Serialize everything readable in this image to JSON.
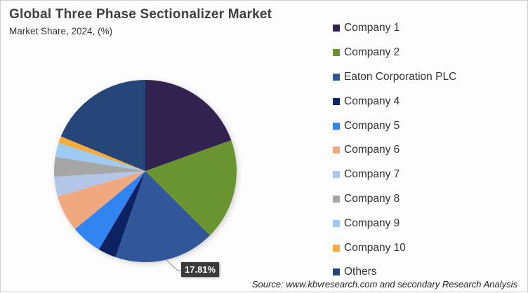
{
  "header": {
    "title": "Global Three Phase Sectionalizer Market",
    "subtitle": "Market Share, 2024, (%)"
  },
  "callout": {
    "label": "17.81%"
  },
  "source": "Source: www.kbvresearch.com and secondary Research Analysis",
  "legend": [
    {
      "label": "Company 1",
      "color": "#30234f"
    },
    {
      "label": "Company 2",
      "color": "#6b9331"
    },
    {
      "label": "Eaton Corporation PLC",
      "color": "#30569a"
    },
    {
      "label": "Company 4",
      "color": "#0b2463"
    },
    {
      "label": "Company 5",
      "color": "#3284f0"
    },
    {
      "label": "Company 6",
      "color": "#f0a97e"
    },
    {
      "label": "Company 7",
      "color": "#b4c6e8"
    },
    {
      "label": "Company 8",
      "color": "#a6a6a6"
    },
    {
      "label": "Company 9",
      "color": "#9dcbf5"
    },
    {
      "label": "Company 10",
      "color": "#f5ab3e"
    },
    {
      "label": "Others",
      "color": "#264478"
    }
  ],
  "chart_data": {
    "type": "pie",
    "title": "Global Three Phase Sectionalizer Market",
    "subtitle": "Market Share, 2024, (%)",
    "categories": [
      "Company 1",
      "Company 2",
      "Eaton Corporation PLC",
      "Company 4",
      "Company 5",
      "Company 6",
      "Company 7",
      "Company 8",
      "Company 9",
      "Company 10",
      "Others"
    ],
    "values": [
      19.5,
      18.0,
      17.81,
      3.2,
      5.5,
      6.5,
      3.5,
      3.5,
      2.5,
      1.2,
      18.79
    ],
    "colors": [
      "#30234f",
      "#6b9331",
      "#30569a",
      "#0b2463",
      "#3284f0",
      "#f0a97e",
      "#b4c6e8",
      "#a6a6a6",
      "#9dcbf5",
      "#f5ab3e",
      "#264478"
    ],
    "annotations": [
      {
        "category": "Eaton Corporation PLC",
        "label": "17.81%"
      }
    ],
    "legend_position": "right",
    "start_angle": "12 o'clock, clockwise"
  }
}
